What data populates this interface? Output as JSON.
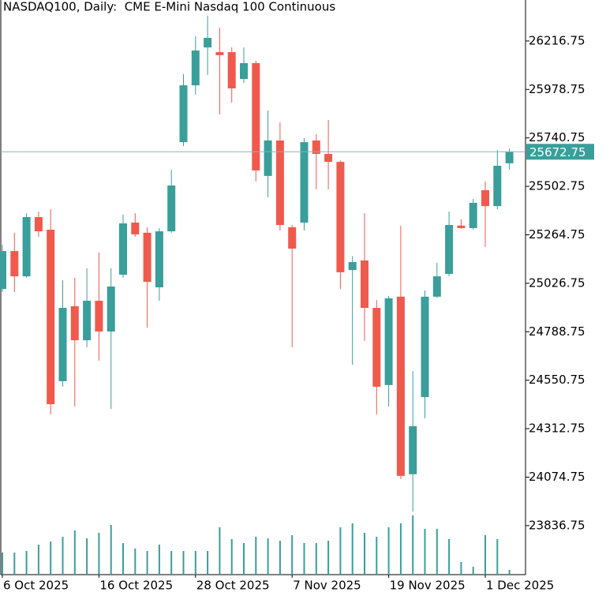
{
  "chart_data": {
    "type": "candlestick",
    "title": "NASDAQ100, Daily:  CME E-Mini Nasdaq 100 Continuous",
    "categories": [
      "6 Oct 2025",
      null,
      null,
      null,
      null,
      null,
      null,
      null,
      "16 Oct 2025",
      null,
      null,
      null,
      null,
      null,
      null,
      null,
      "28 Oct 2025",
      null,
      null,
      null,
      null,
      null,
      null,
      null,
      "7 Nov 2025",
      null,
      null,
      null,
      null,
      null,
      null,
      null,
      "19 Nov 2025",
      null,
      null,
      null,
      null,
      null,
      null,
      null,
      "1 Dec 2025",
      null,
      null
    ],
    "open": [
      24999,
      25185,
      25061,
      25352,
      25290,
      24546,
      24914,
      24747,
      24941,
      24790,
      25069,
      25325,
      25275,
      25007,
      25282,
      25720,
      25999,
      26185,
      26162,
      26162,
      26030,
      26108,
      25554,
      25728,
      25302,
      25325,
      25728,
      25662,
      25623,
      25092,
      25139,
      24906,
      24527,
      24961,
      24089,
      24468,
      24961,
      25073,
      25310,
      25298,
      25484,
      25406,
      25616
    ],
    "high": [
      25216,
      25275,
      25371,
      25379,
      25391,
      25042,
      25054,
      25100,
      25178,
      25100,
      25364,
      25371,
      25302,
      25298,
      25585,
      26054,
      26240,
      26340,
      26282,
      26185,
      26185,
      26120,
      25875,
      25817,
      25313,
      25740,
      25759,
      25829,
      25630,
      25160,
      25371,
      24945,
      24965,
      25310,
      24596,
      24992,
      25127,
      25379,
      25341,
      25441,
      25527,
      25682,
      25689
    ],
    "low": [
      24984,
      24984,
      25054,
      25255,
      24383,
      24519,
      24422,
      24713,
      24647,
      24410,
      25054,
      25255,
      24809,
      24941,
      25275,
      25701,
      25953,
      26050,
      25856,
      25914,
      26011,
      25527,
      25449,
      25286,
      24713,
      25286,
      25488,
      25488,
      24999,
      24627,
      24744,
      24383,
      24422,
      24065,
      23906,
      24364,
      24955,
      25061,
      25294,
      25290,
      25205,
      25391,
      25585
    ],
    "close": [
      25185,
      25061,
      25352,
      25282,
      24433,
      24906,
      24747,
      24941,
      24790,
      25011,
      25321,
      25267,
      25034,
      25282,
      25507,
      25999,
      26170,
      26232,
      26147,
      25984,
      26108,
      25581,
      25728,
      25313,
      25197,
      25720,
      25662,
      25623,
      25081,
      25131,
      24906,
      24519,
      24953,
      24081,
      24325,
      24961,
      25061,
      25313,
      25298,
      25422,
      25406,
      25604,
      25672.75
    ],
    "volume": [
      28,
      28,
      30,
      38,
      42,
      48,
      56,
      46,
      53,
      63,
      40,
      33,
      30,
      38,
      30,
      30,
      30,
      30,
      60,
      45,
      40,
      48,
      46,
      43,
      50,
      40,
      40,
      43,
      60,
      65,
      53,
      48,
      60,
      65,
      75,
      58,
      58,
      45,
      16,
      10,
      50,
      45,
      6
    ],
    "up_color": "#3a9e9a",
    "down_color": "#ef5a4c",
    "current_price": 25672.75,
    "current_price_color": "#8fb0ba",
    "ylim": [
      23596,
      26418
    ],
    "yticks": [
      23836.75,
      24074.75,
      24312.75,
      24550.75,
      24788.75,
      25026.75,
      25264.75,
      25502.75,
      25740.75,
      25978.75,
      26216.75
    ]
  }
}
